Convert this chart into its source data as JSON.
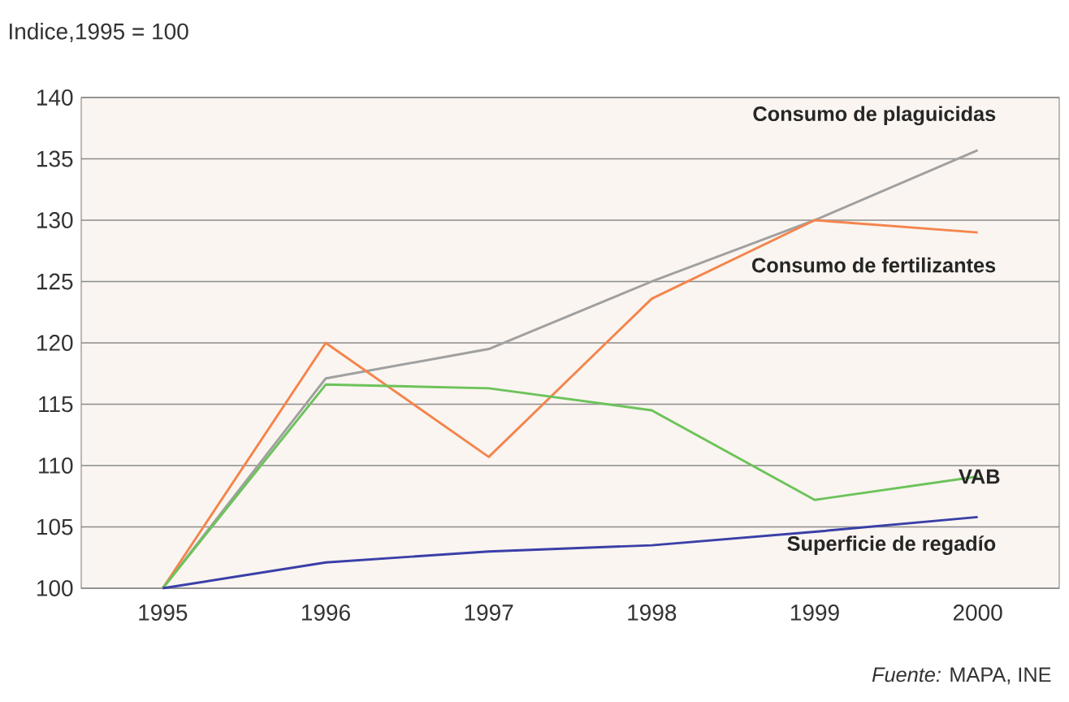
{
  "chart_data": {
    "type": "line",
    "ylabel": "Indice,1995 = 100",
    "categories": [
      "1995",
      "1996",
      "1997",
      "1998",
      "1999",
      "2000"
    ],
    "series": [
      {
        "name": "Consumo de plaguicidas",
        "color": "#a0a0a0",
        "values": [
          100,
          117.1,
          119.5,
          125,
          130,
          135.7
        ]
      },
      {
        "name": "Consumo de fertilizantes",
        "color": "#f4844c",
        "values": [
          100,
          120,
          110.7,
          123.6,
          130,
          129
        ]
      },
      {
        "name": "VAB",
        "color": "#6cc35a",
        "values": [
          100,
          116.6,
          116.3,
          114.5,
          107.2,
          109.1
        ]
      },
      {
        "name": "Superficie de regadío",
        "color": "#3a3fa8",
        "values": [
          100,
          102.1,
          103,
          103.5,
          104.6,
          105.8
        ]
      }
    ],
    "ylim": [
      100,
      140
    ],
    "yticks": [
      100,
      105,
      110,
      115,
      120,
      125,
      130,
      135,
      140
    ],
    "grid": "y",
    "marker": "none",
    "line_style": "solid",
    "annotations": [
      "*Fuente:* MAPA, INE"
    ]
  }
}
